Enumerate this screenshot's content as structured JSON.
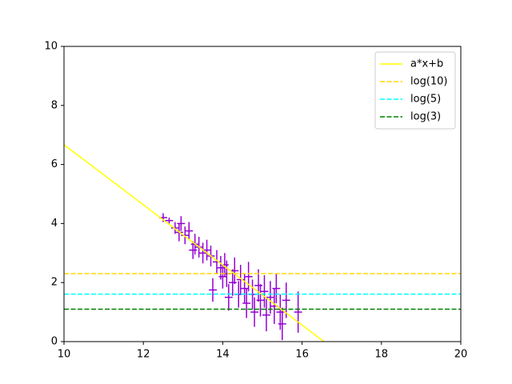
{
  "chart_data": {
    "type": "errorbar",
    "xlim": [
      10,
      20
    ],
    "ylim": [
      0,
      10
    ],
    "xticks": [
      10,
      12,
      14,
      16,
      18,
      20
    ],
    "yticks": [
      0,
      2,
      4,
      6,
      8,
      10
    ],
    "grid": false,
    "legend": "upper right",
    "series": [
      {
        "type": "errorbar",
        "color": "#9400d3",
        "xerr": 0.1,
        "x": [
          12.5,
          12.65,
          12.8,
          12.9,
          12.95,
          13.05,
          13.15,
          13.25,
          13.3,
          13.4,
          13.5,
          13.6,
          13.7,
          13.75,
          13.85,
          13.95,
          14.0,
          14.05,
          14.1,
          14.15,
          14.25,
          14.3,
          14.4,
          14.45,
          14.55,
          14.6,
          14.65,
          14.75,
          14.8,
          14.9,
          14.95,
          15.05,
          15.1,
          15.2,
          15.3,
          15.35,
          15.45,
          15.5,
          15.6,
          15.9
        ],
        "values": [
          4.2,
          4.1,
          3.85,
          3.7,
          4.0,
          3.6,
          3.75,
          3.1,
          3.3,
          3.2,
          3.0,
          3.1,
          2.9,
          1.75,
          2.7,
          2.5,
          2.2,
          2.6,
          2.3,
          1.5,
          2.0,
          2.4,
          1.6,
          2.1,
          1.8,
          1.3,
          2.2,
          1.6,
          1.0,
          1.9,
          1.4,
          1.7,
          0.9,
          1.5,
          1.2,
          1.8,
          1.0,
          0.6,
          1.4,
          1.0
        ],
        "yerr": [
          0.15,
          0.1,
          0.2,
          0.3,
          0.25,
          0.3,
          0.3,
          0.3,
          0.35,
          0.35,
          0.35,
          0.35,
          0.35,
          0.4,
          0.4,
          0.4,
          0.4,
          0.4,
          0.45,
          0.45,
          0.45,
          0.45,
          0.45,
          0.5,
          0.5,
          0.5,
          0.5,
          0.5,
          0.5,
          0.55,
          0.55,
          0.55,
          0.55,
          0.55,
          0.6,
          0.5,
          0.6,
          0.55,
          0.6,
          0.7
        ]
      },
      {
        "type": "line",
        "name": "a*x+b",
        "color": "#ffff00",
        "dash": false,
        "x": [
          10,
          16.55
        ],
        "values": [
          6.67,
          0
        ]
      },
      {
        "type": "line",
        "name": "log(10)",
        "color": "#ffd700",
        "dash": true,
        "x": [
          10,
          20
        ],
        "values": [
          2.303,
          2.303
        ]
      },
      {
        "type": "line",
        "name": "log(5)",
        "color": "#00ffff",
        "dash": true,
        "x": [
          10,
          20
        ],
        "values": [
          1.609,
          1.609
        ]
      },
      {
        "type": "line",
        "name": "log(3)",
        "color": "#008000",
        "dash": true,
        "x": [
          10,
          20
        ],
        "values": [
          1.099,
          1.099
        ]
      }
    ]
  }
}
